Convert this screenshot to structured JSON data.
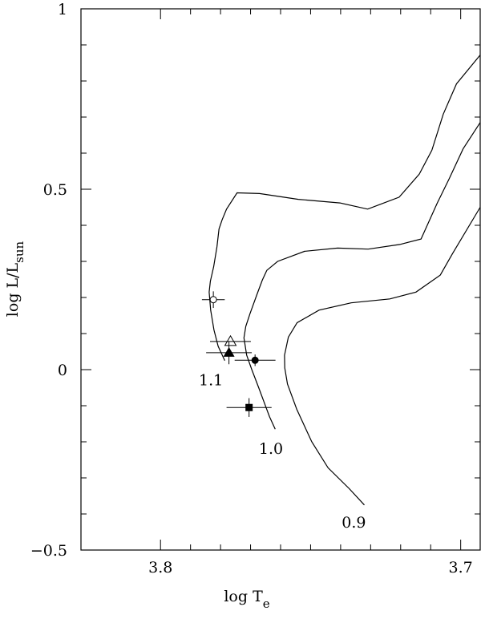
{
  "chart_data": {
    "type": "line",
    "title": "",
    "xlabel": {
      "text": "log T",
      "sub": "e"
    },
    "ylabel": {
      "text": "log L/L",
      "sub": "sun"
    },
    "x_reversed": true,
    "xlim": [
      3.8265,
      3.6935
    ],
    "ylim": [
      -0.5,
      1.0
    ],
    "x_ticks": [
      {
        "value": 3.8,
        "label": "3.8"
      },
      {
        "value": 3.7,
        "label": "3.7"
      }
    ],
    "x_minor_ticks": [
      3.8,
      3.79,
      3.78,
      3.77,
      3.76,
      3.75,
      3.74,
      3.73,
      3.72,
      3.71,
      3.7
    ],
    "y_ticks": [
      {
        "value": 1.0,
        "label": "1"
      },
      {
        "value": 0.5,
        "label": "0.5"
      },
      {
        "value": 0.0,
        "label": "0"
      },
      {
        "value": -0.5,
        "label": "−0.5"
      }
    ],
    "y_minor_ticks": [
      0.9,
      0.8,
      0.7,
      0.6,
      0.4,
      0.3,
      0.2,
      0.1,
      -0.1,
      -0.2,
      -0.3,
      -0.4
    ],
    "series": [
      {
        "name": "1.1",
        "points": [
          [
            3.7786,
            0.025
          ],
          [
            3.7808,
            0.065
          ],
          [
            3.7822,
            0.11
          ],
          [
            3.7833,
            0.165
          ],
          [
            3.7838,
            0.215
          ],
          [
            3.7834,
            0.245
          ],
          [
            3.7823,
            0.285
          ],
          [
            3.7812,
            0.34
          ],
          [
            3.7805,
            0.39
          ],
          [
            3.7795,
            0.415
          ],
          [
            3.778,
            0.445
          ],
          [
            3.7745,
            0.49
          ],
          [
            3.767,
            0.488
          ],
          [
            3.7541,
            0.472
          ],
          [
            3.7402,
            0.462
          ],
          [
            3.731,
            0.445
          ],
          [
            3.7205,
            0.478
          ],
          [
            3.7138,
            0.542
          ],
          [
            3.7096,
            0.608
          ],
          [
            3.7058,
            0.708
          ],
          [
            3.7014,
            0.792
          ],
          [
            3.6935,
            0.872
          ]
        ]
      },
      {
        "name": "1.0",
        "points": [
          [
            3.7618,
            -0.165
          ],
          [
            3.7637,
            -0.13
          ],
          [
            3.7673,
            -0.05
          ],
          [
            3.7696,
            0.0
          ],
          [
            3.7713,
            0.04
          ],
          [
            3.7722,
            0.088
          ],
          [
            3.7716,
            0.12
          ],
          [
            3.7702,
            0.155
          ],
          [
            3.7678,
            0.21
          ],
          [
            3.7661,
            0.248
          ],
          [
            3.7646,
            0.275
          ],
          [
            3.761,
            0.3
          ],
          [
            3.752,
            0.328
          ],
          [
            3.741,
            0.337
          ],
          [
            3.7308,
            0.334
          ],
          [
            3.7203,
            0.347
          ],
          [
            3.7132,
            0.362
          ],
          [
            3.7078,
            0.462
          ],
          [
            3.7039,
            0.528
          ],
          [
            3.6992,
            0.612
          ],
          [
            3.6935,
            0.685
          ]
        ]
      },
      {
        "name": "0.9",
        "points": [
          [
            3.7321,
            -0.375
          ],
          [
            3.7371,
            -0.33
          ],
          [
            3.7442,
            -0.272
          ],
          [
            3.7496,
            -0.2
          ],
          [
            3.7546,
            -0.11
          ],
          [
            3.7577,
            -0.04
          ],
          [
            3.7586,
            0.005
          ],
          [
            3.7587,
            0.04
          ],
          [
            3.7574,
            0.09
          ],
          [
            3.7545,
            0.13
          ],
          [
            3.7472,
            0.165
          ],
          [
            3.7365,
            0.185
          ],
          [
            3.7236,
            0.196
          ],
          [
            3.7149,
            0.215
          ],
          [
            3.7068,
            0.262
          ],
          [
            3.7027,
            0.322
          ],
          [
            3.6935,
            0.45
          ]
        ]
      }
    ],
    "track_labels": [
      {
        "text": "1.1",
        "x": 3.7832,
        "y": -0.043
      },
      {
        "text": "1.0",
        "x": 3.7632,
        "y": -0.233
      },
      {
        "text": "0.9",
        "x": 3.7356,
        "y": -0.438
      }
    ],
    "points": [
      {
        "x": 3.7824,
        "y": 0.194,
        "marker": "open-circle",
        "xerr": 0.0038,
        "yerr": 0.023
      },
      {
        "x": 3.7767,
        "y": 0.078,
        "marker": "open-triangle",
        "xerr": 0.0068,
        "yerr": 0.0
      },
      {
        "x": 3.7772,
        "y": 0.047,
        "marker": "filled-triangle",
        "xerr": 0.0076,
        "yerr": 0.032
      },
      {
        "x": 3.7685,
        "y": 0.026,
        "marker": "filled-circle",
        "xerr": 0.0068,
        "yerr": 0.016
      },
      {
        "x": 3.7705,
        "y": -0.105,
        "marker": "filled-square",
        "xerr": 0.0075,
        "yerr": 0.026
      }
    ]
  }
}
